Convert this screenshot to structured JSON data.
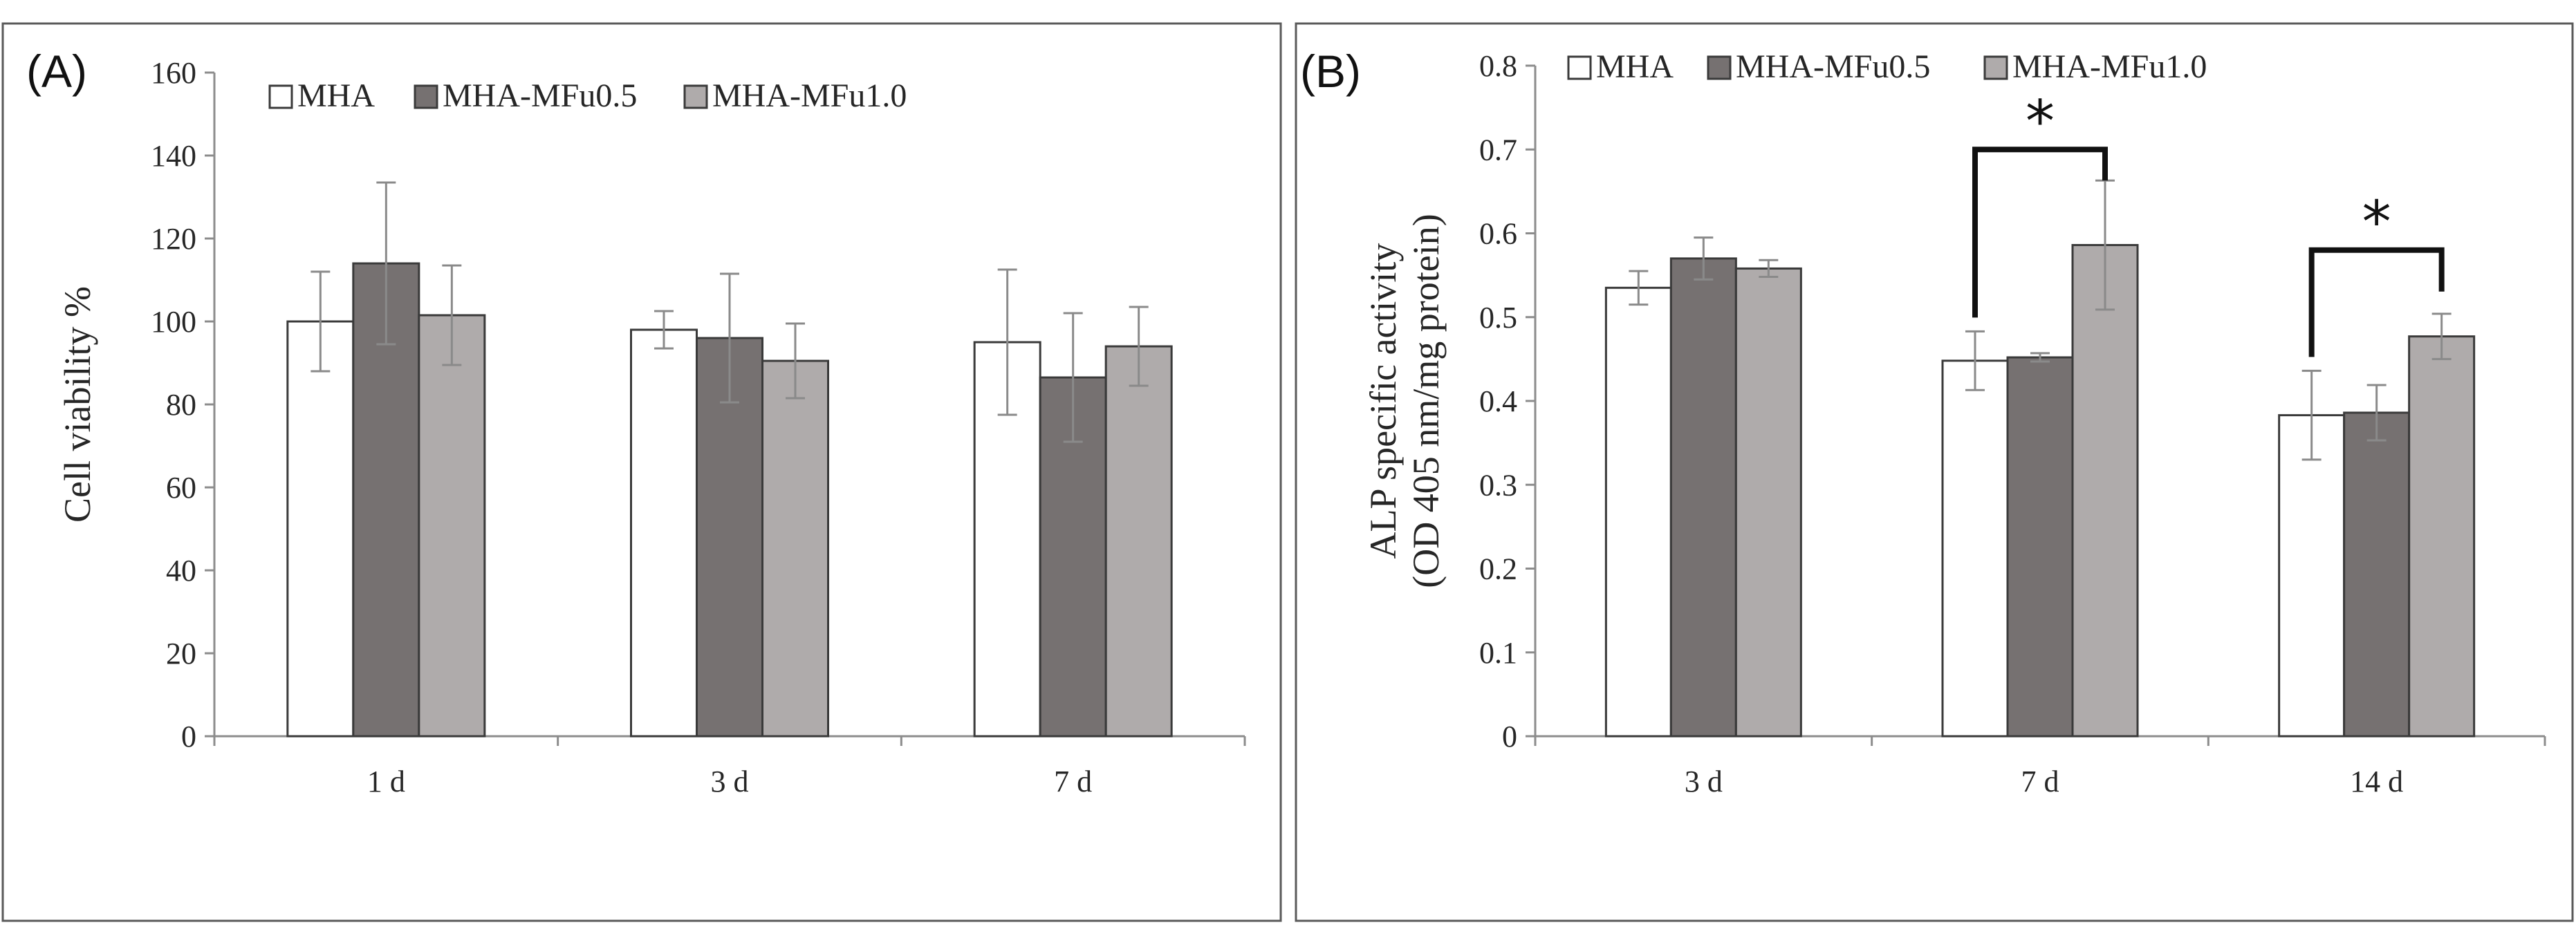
{
  "chart_data": [
    {
      "type": "bar",
      "panel_label": "(A)",
      "title": "",
      "xlabel": "",
      "ylabel": "Cell viability %",
      "ylim": [
        0,
        160
      ],
      "yticks": [
        "0",
        "20",
        "40",
        "60",
        "80",
        "100",
        "120",
        "140",
        "160"
      ],
      "categories": [
        "1 d",
        "3 d",
        "7 d"
      ],
      "legend": {
        "placement": "top-left",
        "entries": [
          "MHA",
          "MHA-MFu0.5",
          "MHA-MFu1.0"
        ]
      },
      "series": [
        {
          "name": "MHA",
          "color": "#ffffff",
          "values": [
            100,
            98,
            95
          ],
          "errors": [
            12,
            4.5,
            17.5
          ]
        },
        {
          "name": "MHA-MFu0.5",
          "color": "#767171",
          "values": [
            114,
            96,
            86.5
          ],
          "errors": [
            19.5,
            15.5,
            15.5
          ]
        },
        {
          "name": "MHA-MFu1.0",
          "color": "#afabab",
          "values": [
            101.5,
            90.5,
            94
          ],
          "errors": [
            12,
            9,
            9.5
          ]
        }
      ],
      "significance": []
    },
    {
      "type": "bar",
      "panel_label": "(B)",
      "title": "",
      "xlabel": "",
      "ylabel": "ALP specific activity",
      "ylabel_line2": "(OD 405 nm/mg protein)",
      "ylim": [
        0,
        0.8
      ],
      "yticks": [
        "0",
        "0.1",
        "0.2",
        "0.3",
        "0.4",
        "0.5",
        "0.6",
        "0.7",
        "0.8"
      ],
      "categories": [
        "3 d",
        "7 d",
        "14 d"
      ],
      "legend": {
        "placement": "top",
        "entries": [
          "MHA",
          "MHA-MFu0.5",
          "MHA-MFu1.0"
        ]
      },
      "series": [
        {
          "name": "MHA",
          "color": "#ffffff",
          "values": [
            0.535,
            0.448,
            0.383
          ],
          "errors": [
            0.02,
            0.035,
            0.053
          ]
        },
        {
          "name": "MHA-MFu0.5",
          "color": "#767171",
          "values": [
            0.57,
            0.452,
            0.386
          ],
          "errors": [
            0.025,
            0.005,
            0.033
          ]
        },
        {
          "name": "MHA-MFu1.0",
          "color": "#afabab",
          "values": [
            0.558,
            0.586,
            0.477
          ],
          "errors": [
            0.01,
            0.077,
            0.027
          ]
        }
      ],
      "significance": [
        {
          "category_index": 1,
          "from_series": 0,
          "to_series": 2,
          "level": 0.7,
          "label": "*"
        },
        {
          "category_index": 2,
          "from_series": 0,
          "to_series": 2,
          "level": 0.58,
          "label": "*"
        }
      ]
    }
  ]
}
